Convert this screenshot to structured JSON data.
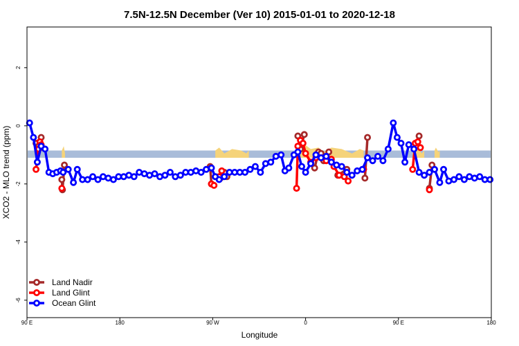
{
  "chart_data": {
    "type": "line",
    "title": "7.5N-12.5N December (Ver 10)   2015-01-01 to 2020-12-18",
    "xlabel": "Longitude",
    "ylabel": "XCO2 - MLO trend (ppm)",
    "xlim": [
      90,
      450
    ],
    "ylim": [
      -6.6,
      3.4
    ],
    "x_ticks": [
      {
        "value": 90,
        "label": "90 E"
      },
      {
        "value": 162,
        "label": "180"
      },
      {
        "value": 234,
        "label": "90 W"
      },
      {
        "value": 306,
        "label": "0"
      },
      {
        "value": 378,
        "label": "90 E"
      },
      {
        "value": 450,
        "label": "180"
      }
    ],
    "y_ticks": [
      {
        "value": 2,
        "label": "2"
      },
      {
        "value": 0,
        "label": "0"
      },
      {
        "value": -2,
        "label": "-2"
      },
      {
        "value": -4,
        "label": "-4"
      },
      {
        "value": -6,
        "label": "-6"
      }
    ],
    "band": {
      "y_min": -1.1,
      "y_max": -0.85,
      "color": "#a9bcd9"
    },
    "land_color": "#f5d37a",
    "land_patches": [
      [
        {
          "x": 117,
          "y": -0.85
        },
        {
          "x": 118.5,
          "y": -0.7
        },
        {
          "x": 119.5,
          "y": -0.95
        }
      ],
      [
        {
          "x": 236,
          "y": -0.85
        },
        {
          "x": 239,
          "y": -0.75
        },
        {
          "x": 243,
          "y": -0.95
        },
        {
          "x": 249,
          "y": -0.8
        },
        {
          "x": 256,
          "y": -0.85
        },
        {
          "x": 260,
          "y": -0.95
        },
        {
          "x": 262,
          "y": -0.85
        }
      ],
      [
        {
          "x": 301,
          "y": -0.85
        },
        {
          "x": 304,
          "y": -0.6
        },
        {
          "x": 310,
          "y": -0.8
        },
        {
          "x": 316,
          "y": -0.75
        },
        {
          "x": 320,
          "y": -0.9
        },
        {
          "x": 326,
          "y": -0.75
        },
        {
          "x": 334,
          "y": -0.8
        },
        {
          "x": 342,
          "y": -0.95
        },
        {
          "x": 348,
          "y": -0.8
        },
        {
          "x": 351,
          "y": -0.85
        }
      ],
      [
        {
          "x": 389,
          "y": -0.85
        },
        {
          "x": 391,
          "y": -0.7
        },
        {
          "x": 394,
          "y": -0.8
        },
        {
          "x": 396,
          "y": -0.95
        },
        {
          "x": 398,
          "y": -0.85
        }
      ],
      [
        {
          "x": 406,
          "y": -0.85
        },
        {
          "x": 407,
          "y": -0.75
        },
        {
          "x": 409,
          "y": -0.9
        },
        {
          "x": 410,
          "y": -0.85
        }
      ]
    ],
    "series": [
      {
        "name": "Land Nadir",
        "color": "#a52a2a",
        "segments": [
          [
            {
              "x": 97,
              "y": -0.6
            },
            {
              "x": 99,
              "y": -0.7
            },
            {
              "x": 101,
              "y": -0.4
            }
          ],
          [
            {
              "x": 117,
              "y": -1.85
            },
            {
              "x": 117.5,
              "y": -2.2
            },
            {
              "x": 119,
              "y": -1.35
            }
          ],
          [
            {
              "x": 232,
              "y": -1.4
            },
            {
              "x": 233,
              "y": -2.0
            }
          ],
          [
            {
              "x": 240,
              "y": -1.8
            },
            {
              "x": 243,
              "y": -1.6
            },
            {
              "x": 245,
              "y": -1.75
            }
          ],
          [
            {
              "x": 300,
              "y": -0.35
            },
            {
              "x": 302,
              "y": -0.8
            },
            {
              "x": 305,
              "y": -0.3
            }
          ],
          [
            {
              "x": 313,
              "y": -1.45
            },
            {
              "x": 316,
              "y": -0.9
            },
            {
              "x": 318,
              "y": -0.95
            },
            {
              "x": 320,
              "y": -1.2
            },
            {
              "x": 324,
              "y": -0.9
            }
          ],
          [
            {
              "x": 331,
              "y": -1.7
            },
            {
              "x": 338,
              "y": -1.5
            }
          ],
          [
            {
              "x": 352,
              "y": -1.8
            },
            {
              "x": 354,
              "y": -0.4
            }
          ],
          [
            {
              "x": 394,
              "y": -0.35
            },
            {
              "x": 392,
              "y": -0.7
            }
          ],
          [
            {
              "x": 402,
              "y": -2.15
            },
            {
              "x": 404,
              "y": -1.35
            }
          ]
        ]
      },
      {
        "name": "Land Glint",
        "color": "#ff0000",
        "segments": [
          [
            {
              "x": 97,
              "y": -1.5
            },
            {
              "x": 99,
              "y": -0.8
            },
            {
              "x": 100,
              "y": -0.55
            },
            {
              "x": 101,
              "y": -0.65
            }
          ],
          [
            {
              "x": 117,
              "y": -2.15
            }
          ],
          [
            {
              "x": 233,
              "y": -2.0
            },
            {
              "x": 235,
              "y": -2.05
            }
          ],
          [
            {
              "x": 239,
              "y": -1.75
            },
            {
              "x": 241,
              "y": -1.55
            }
          ],
          [
            {
              "x": 299,
              "y": -2.15
            },
            {
              "x": 300,
              "y": -0.7
            },
            {
              "x": 302,
              "y": -0.5
            },
            {
              "x": 304,
              "y": -0.6
            },
            {
              "x": 306,
              "y": -0.95
            },
            {
              "x": 310,
              "y": -1.25
            },
            {
              "x": 314,
              "y": -1.1
            },
            {
              "x": 318,
              "y": -1.1
            },
            {
              "x": 322,
              "y": -1.2
            },
            {
              "x": 326,
              "y": -1.15
            },
            {
              "x": 328,
              "y": -1.4
            },
            {
              "x": 332,
              "y": -1.7
            },
            {
              "x": 336,
              "y": -1.75
            },
            {
              "x": 339,
              "y": -1.9
            }
          ],
          [
            {
              "x": 351,
              "y": -1.5
            }
          ],
          [
            {
              "x": 389,
              "y": -1.5
            },
            {
              "x": 391,
              "y": -0.6
            },
            {
              "x": 393,
              "y": -0.55
            },
            {
              "x": 395,
              "y": -0.75
            }
          ],
          [
            {
              "x": 402,
              "y": -2.2
            }
          ]
        ]
      },
      {
        "name": "Ocean Glint",
        "color": "#0000ff",
        "points": [
          {
            "x": 92,
            "y": 0.1
          },
          {
            "x": 95,
            "y": -0.4
          },
          {
            "x": 98,
            "y": -1.25
          },
          {
            "x": 101,
            "y": -0.7
          },
          {
            "x": 104,
            "y": -0.8
          },
          {
            "x": 107,
            "y": -1.6
          },
          {
            "x": 110,
            "y": -1.65
          },
          {
            "x": 113,
            "y": -1.6
          },
          {
            "x": 116,
            "y": -1.55
          },
          {
            "x": 118,
            "y": -1.6
          },
          {
            "x": 122,
            "y": -1.5
          },
          {
            "x": 126,
            "y": -1.95
          },
          {
            "x": 129,
            "y": -1.5
          },
          {
            "x": 133,
            "y": -1.85
          },
          {
            "x": 137,
            "y": -1.85
          },
          {
            "x": 141,
            "y": -1.75
          },
          {
            "x": 145,
            "y": -1.85
          },
          {
            "x": 149,
            "y": -1.75
          },
          {
            "x": 153,
            "y": -1.8
          },
          {
            "x": 157,
            "y": -1.85
          },
          {
            "x": 161,
            "y": -1.75
          },
          {
            "x": 165,
            "y": -1.75
          },
          {
            "x": 169,
            "y": -1.7
          },
          {
            "x": 173,
            "y": -1.75
          },
          {
            "x": 177,
            "y": -1.6
          },
          {
            "x": 181,
            "y": -1.65
          },
          {
            "x": 185,
            "y": -1.7
          },
          {
            "x": 189,
            "y": -1.65
          },
          {
            "x": 193,
            "y": -1.75
          },
          {
            "x": 197,
            "y": -1.7
          },
          {
            "x": 201,
            "y": -1.6
          },
          {
            "x": 205,
            "y": -1.75
          },
          {
            "x": 209,
            "y": -1.7
          },
          {
            "x": 213,
            "y": -1.6
          },
          {
            "x": 217,
            "y": -1.6
          },
          {
            "x": 221,
            "y": -1.55
          },
          {
            "x": 225,
            "y": -1.6
          },
          {
            "x": 229,
            "y": -1.5
          },
          {
            "x": 233,
            "y": -1.45
          },
          {
            "x": 236,
            "y": -1.75
          },
          {
            "x": 239,
            "y": -1.85
          },
          {
            "x": 243,
            "y": -1.75
          },
          {
            "x": 247,
            "y": -1.6
          },
          {
            "x": 251,
            "y": -1.6
          },
          {
            "x": 255,
            "y": -1.6
          },
          {
            "x": 259,
            "y": -1.6
          },
          {
            "x": 263,
            "y": -1.5
          },
          {
            "x": 267,
            "y": -1.4
          },
          {
            "x": 271,
            "y": -1.6
          },
          {
            "x": 275,
            "y": -1.3
          },
          {
            "x": 279,
            "y": -1.25
          },
          {
            "x": 283,
            "y": -1.05
          },
          {
            "x": 287,
            "y": -1.0
          },
          {
            "x": 290,
            "y": -1.55
          },
          {
            "x": 293,
            "y": -1.45
          },
          {
            "x": 297,
            "y": -1.0
          },
          {
            "x": 300,
            "y": -0.9
          },
          {
            "x": 303,
            "y": -1.4
          },
          {
            "x": 306,
            "y": -1.6
          },
          {
            "x": 310,
            "y": -1.3
          },
          {
            "x": 314,
            "y": -1.0
          },
          {
            "x": 318,
            "y": -1.1
          },
          {
            "x": 322,
            "y": -1.05
          },
          {
            "x": 326,
            "y": -1.25
          },
          {
            "x": 330,
            "y": -1.35
          },
          {
            "x": 334,
            "y": -1.4
          },
          {
            "x": 338,
            "y": -1.6
          },
          {
            "x": 342,
            "y": -1.7
          },
          {
            "x": 346,
            "y": -1.55
          },
          {
            "x": 350,
            "y": -1.5
          },
          {
            "x": 354,
            "y": -1.1
          },
          {
            "x": 358,
            "y": -1.2
          },
          {
            "x": 362,
            "y": -1.05
          },
          {
            "x": 366,
            "y": -1.2
          },
          {
            "x": 370,
            "y": -0.8
          },
          {
            "x": 374,
            "y": 0.1
          },
          {
            "x": 377,
            "y": -0.4
          },
          {
            "x": 380,
            "y": -0.6
          },
          {
            "x": 383,
            "y": -1.25
          },
          {
            "x": 386,
            "y": -0.65
          },
          {
            "x": 390,
            "y": -0.8
          },
          {
            "x": 394,
            "y": -1.6
          },
          {
            "x": 398,
            "y": -1.7
          },
          {
            "x": 402,
            "y": -1.6
          },
          {
            "x": 406,
            "y": -1.5
          },
          {
            "x": 410,
            "y": -1.95
          },
          {
            "x": 413,
            "y": -1.5
          },
          {
            "x": 417,
            "y": -1.9
          },
          {
            "x": 421,
            "y": -1.85
          },
          {
            "x": 425,
            "y": -1.75
          },
          {
            "x": 429,
            "y": -1.85
          },
          {
            "x": 433,
            "y": -1.75
          },
          {
            "x": 437,
            "y": -1.8
          },
          {
            "x": 441,
            "y": -1.75
          },
          {
            "x": 445,
            "y": -1.85
          },
          {
            "x": 449,
            "y": -1.85
          }
        ]
      }
    ],
    "legend": {
      "position": "bottom-left",
      "entries": [
        {
          "label": "Land Nadir",
          "color": "#a52a2a"
        },
        {
          "label": "Land Glint",
          "color": "#ff0000"
        },
        {
          "label": "Ocean Glint",
          "color": "#0000ff"
        }
      ]
    }
  }
}
